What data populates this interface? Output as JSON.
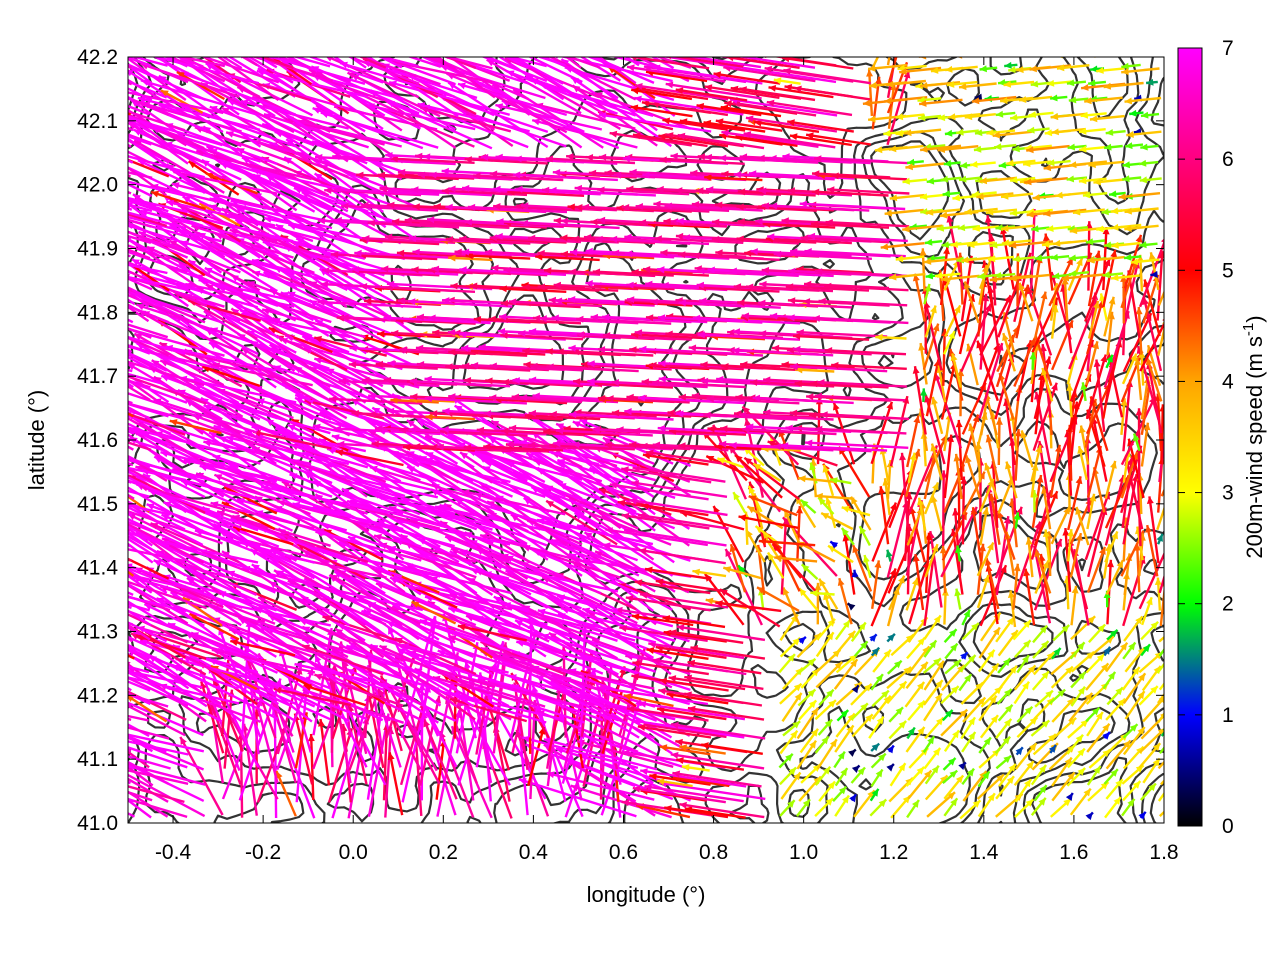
{
  "chart_data": {
    "type": "vector-field",
    "xlabel": "longitude (°)",
    "ylabel": "latitude (°)",
    "xlim": [
      -0.5,
      1.8
    ],
    "ylim": [
      41.0,
      42.2
    ],
    "xticks": [
      "-0.4",
      "-0.2",
      "0.0",
      "0.2",
      "0.4",
      "0.6",
      "0.8",
      "1.0",
      "1.2",
      "1.4",
      "1.6",
      "1.8"
    ],
    "xtick_values": [
      -0.4,
      -0.2,
      0.0,
      0.2,
      0.4,
      0.6,
      0.8,
      1.0,
      1.2,
      1.4,
      1.6,
      1.8
    ],
    "yticks": [
      "41.0",
      "41.1",
      "41.2",
      "41.3",
      "41.4",
      "41.5",
      "41.6",
      "41.7",
      "41.8",
      "41.9",
      "42.0",
      "42.1",
      "42.2"
    ],
    "ytick_values": [
      41.0,
      41.1,
      41.2,
      41.3,
      41.4,
      41.5,
      41.6,
      41.7,
      41.8,
      41.9,
      42.0,
      42.1,
      42.2
    ],
    "colorbar": {
      "label_main": "200m-wind speed (m s",
      "label_sup": "-1",
      "label_end": ")",
      "min": 0,
      "max": 7,
      "ticks": [
        "0",
        "1",
        "2",
        "3",
        "4",
        "5",
        "6",
        "7"
      ],
      "tick_values": [
        0,
        1,
        2,
        3,
        4,
        5,
        6,
        7
      ],
      "colors": [
        "#000000",
        "#0000ff",
        "#00ff00",
        "#ffff00",
        "#ffa500",
        "#ff0000",
        "#ff00ff"
      ]
    },
    "grid": false,
    "contours": "topography (dark gray lines)",
    "wind_regimes": [
      {
        "region": "west",
        "lon": [
          -0.5,
          0.8
        ],
        "lat": [
          41.0,
          42.2
        ],
        "direction": "toward west-northwest",
        "speed_ms": 7.0
      },
      {
        "region": "central band",
        "lon": [
          0.2,
          1.2
        ],
        "lat": [
          41.6,
          42.0
        ],
        "direction": "toward west",
        "speed_ms": 5.5
      },
      {
        "region": "northeast",
        "lon": [
          0.9,
          1.8
        ],
        "lat": [
          41.8,
          42.2
        ],
        "direction": "toward west",
        "speed_ms": 3.0
      },
      {
        "region": "southeast",
        "lon": [
          0.9,
          1.8
        ],
        "lat": [
          41.0,
          41.3
        ],
        "direction": "toward northeast",
        "speed_ms": 3.0
      },
      {
        "region": "east",
        "lon": [
          1.2,
          1.8
        ],
        "lat": [
          41.3,
          41.8
        ],
        "direction": "toward north-northeast",
        "speed_ms": 4.0
      }
    ]
  }
}
